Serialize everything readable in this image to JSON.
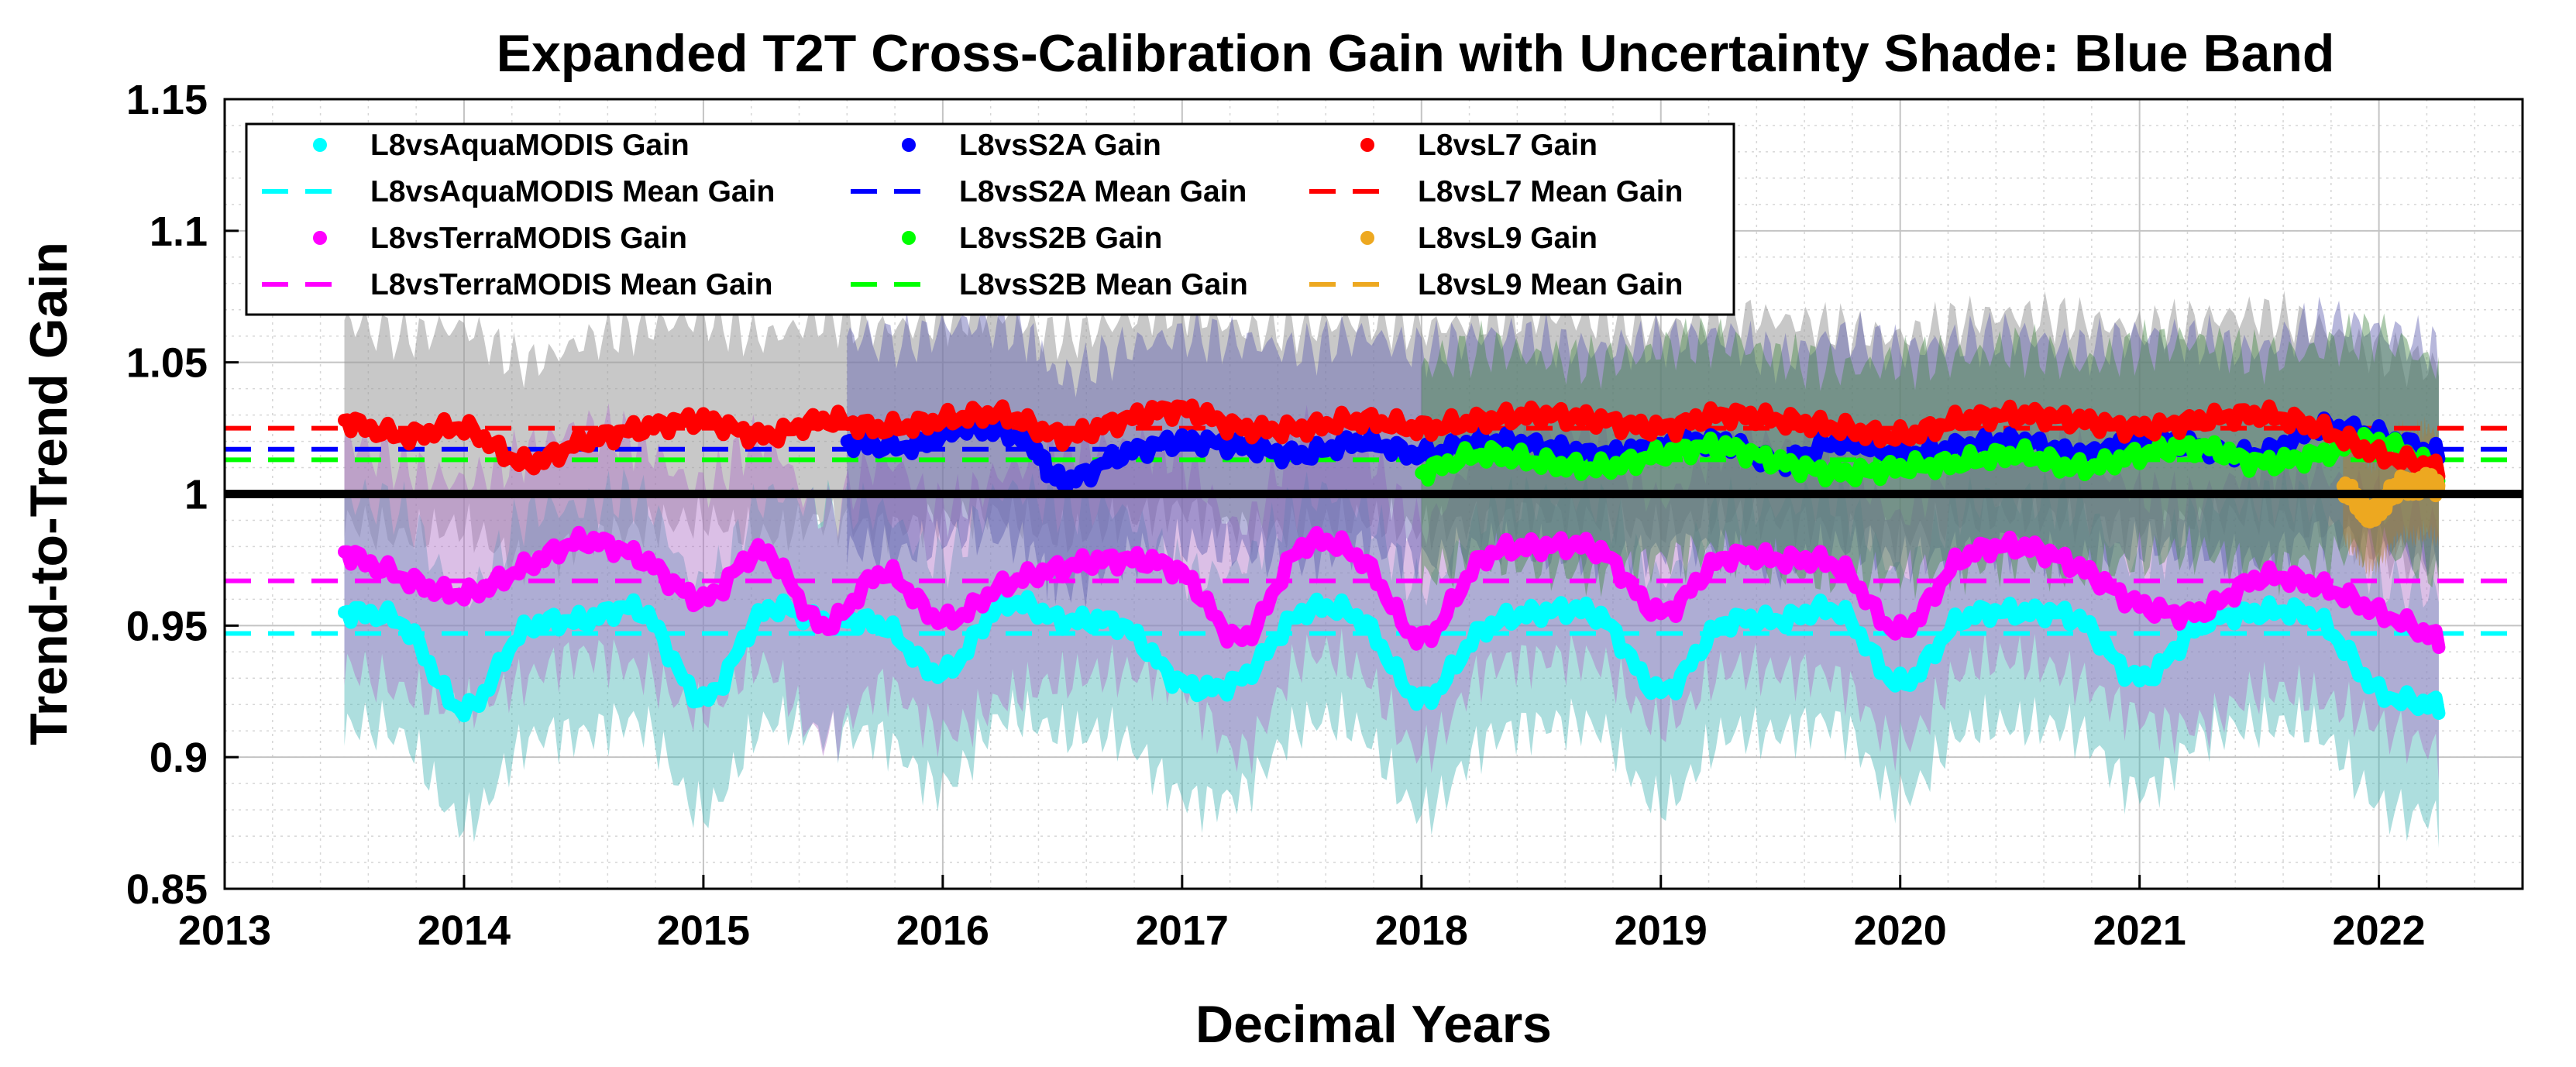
{
  "chart_data": {
    "type": "line",
    "title": "Expanded T2T Cross-Calibration Gain with Uncertainty Shade: Blue Band",
    "xlabel": "Decimal Years",
    "ylabel": "Trend-to-Trend Gain",
    "xlim": [
      2013,
      2022.6
    ],
    "ylim": [
      0.85,
      1.15
    ],
    "xticks": [
      2013,
      2014,
      2015,
      2016,
      2017,
      2018,
      2019,
      2020,
      2021,
      2022
    ],
    "yticks": [
      0.85,
      0.9,
      0.95,
      1,
      1.05,
      1.1,
      1.15
    ],
    "xtick_labels": [
      "2013",
      "2014",
      "2015",
      "2016",
      "2017",
      "2018",
      "2019",
      "2020",
      "2021",
      "2022"
    ],
    "ytick_labels": [
      "0.85",
      "0.9",
      "0.95",
      "1",
      "1.05",
      "1.1",
      "1.15"
    ],
    "grid": true,
    "minor_grid": true,
    "legend_position": "top-left",
    "reference_line": {
      "y": 1.0,
      "color": "#000000"
    },
    "series": [
      {
        "name": "L8vsAquaMODIS",
        "gain_label": "L8vsAquaMODIS Gain",
        "mean_label": "L8vsAquaMODIS Mean Gain",
        "color": "#00ffff",
        "band_color": "#4ab5b5",
        "mean": 0.947,
        "uncertainty": 0.043,
        "x": [
          2013.5,
          2013.75,
          2014.0,
          2014.25,
          2014.5,
          2014.75,
          2015.0,
          2015.25,
          2015.5,
          2015.75,
          2016.0,
          2016.25,
          2016.5,
          2016.75,
          2017.0,
          2017.25,
          2017.5,
          2017.75,
          2018.0,
          2018.25,
          2018.5,
          2018.75,
          2019.0,
          2019.25,
          2019.5,
          2019.75,
          2020.0,
          2020.25,
          2020.5,
          2020.75,
          2021.0,
          2021.25,
          2021.5,
          2021.75,
          2022.0,
          2022.25
        ],
        "values": [
          0.955,
          0.95,
          0.918,
          0.948,
          0.952,
          0.955,
          0.922,
          0.955,
          0.952,
          0.95,
          0.932,
          0.958,
          0.952,
          0.95,
          0.928,
          0.93,
          0.955,
          0.952,
          0.922,
          0.948,
          0.955,
          0.953,
          0.925,
          0.95,
          0.952,
          0.955,
          0.928,
          0.952,
          0.955,
          0.952,
          0.93,
          0.95,
          0.955,
          0.952,
          0.925,
          0.92
        ]
      },
      {
        "name": "L8vsTerraMODIS",
        "gain_label": "L8vsTerraMODIS Gain",
        "mean_label": "L8vsTerraMODIS Mean Gain",
        "color": "#ff00ff",
        "band_color": "#b070c8",
        "mean": 0.967,
        "uncertainty": 0.043,
        "x": [
          2013.5,
          2013.75,
          2014.0,
          2014.25,
          2014.5,
          2014.75,
          2015.0,
          2015.25,
          2015.5,
          2015.75,
          2016.0,
          2016.25,
          2016.5,
          2016.75,
          2017.0,
          2017.25,
          2017.5,
          2017.75,
          2018.0,
          2018.25,
          2018.5,
          2018.75,
          2019.0,
          2019.25,
          2019.5,
          2019.75,
          2020.0,
          2020.25,
          2020.5,
          2020.75,
          2021.0,
          2021.25,
          2021.5,
          2021.75,
          2022.0,
          2022.25
        ],
        "values": [
          0.978,
          0.968,
          0.962,
          0.972,
          0.982,
          0.975,
          0.96,
          0.978,
          0.95,
          0.97,
          0.952,
          0.965,
          0.972,
          0.975,
          0.97,
          0.945,
          0.98,
          0.975,
          0.945,
          0.975,
          0.98,
          0.978,
          0.955,
          0.975,
          0.975,
          0.972,
          0.948,
          0.975,
          0.98,
          0.972,
          0.958,
          0.955,
          0.968,
          0.965,
          0.955,
          0.945
        ]
      },
      {
        "name": "L8vsS2A",
        "gain_label": "L8vsS2A Gain",
        "mean_label": "L8vsS2A Mean Gain",
        "color": "#0000ff",
        "band_color": "#6060b0",
        "mean": 1.017,
        "uncertainty": 0.04,
        "x": [
          2015.6,
          2015.85,
          2016.1,
          2016.35,
          2016.5,
          2016.75,
          2017.0,
          2017.25,
          2017.5,
          2017.75,
          2018.0,
          2018.25,
          2018.5,
          2018.75,
          2019.0,
          2019.25,
          2019.5,
          2019.75,
          2020.0,
          2020.25,
          2020.5,
          2020.75,
          2021.0,
          2021.25,
          2021.5,
          2021.75,
          2022.0,
          2022.25
        ],
        "values": [
          1.02,
          1.018,
          1.025,
          1.02,
          1.005,
          1.015,
          1.02,
          1.018,
          1.015,
          1.02,
          1.015,
          1.02,
          1.018,
          1.015,
          1.018,
          1.02,
          1.012,
          1.02,
          1.015,
          1.018,
          1.02,
          1.015,
          1.02,
          1.018,
          1.015,
          1.025,
          1.022,
          1.015
        ]
      },
      {
        "name": "L8vsS2B",
        "gain_label": "L8vsS2B Gain",
        "mean_label": "L8vsS2B Mean Gain",
        "color": "#00ff00",
        "band_color": "#4a8a4a",
        "mean": 1.013,
        "uncertainty": 0.04,
        "x": [
          2018.0,
          2018.25,
          2018.5,
          2018.75,
          2019.0,
          2019.25,
          2019.5,
          2019.75,
          2020.0,
          2020.25,
          2020.5,
          2020.75,
          2021.0,
          2021.25,
          2021.5,
          2021.75,
          2022.0,
          2022.25
        ],
        "values": [
          1.008,
          1.015,
          1.012,
          1.01,
          1.015,
          1.018,
          1.012,
          1.008,
          1.01,
          1.012,
          1.015,
          1.01,
          1.015,
          1.018,
          1.012,
          1.015,
          1.02,
          1.008
        ]
      },
      {
        "name": "L8vsL7",
        "gain_label": "L8vsL7 Gain",
        "mean_label": "L8vsL7 Mean Gain",
        "color": "#ff0000",
        "band_color": "#9a9a9a",
        "mean": 1.025,
        "uncertainty": 0.038,
        "x": [
          2013.5,
          2013.75,
          2014.0,
          2014.25,
          2014.5,
          2014.75,
          2015.0,
          2015.25,
          2015.5,
          2015.75,
          2016.0,
          2016.25,
          2016.5,
          2016.75,
          2017.0,
          2017.25,
          2017.5,
          2017.75,
          2018.0,
          2018.25,
          2018.5,
          2018.75,
          2019.0,
          2019.25,
          2019.5,
          2019.75,
          2020.0,
          2020.25,
          2020.5,
          2020.75,
          2021.0,
          2021.25,
          2021.5,
          2021.75,
          2022.0,
          2022.25
        ],
        "values": [
          1.028,
          1.022,
          1.025,
          1.012,
          1.02,
          1.025,
          1.028,
          1.022,
          1.028,
          1.025,
          1.028,
          1.03,
          1.022,
          1.028,
          1.032,
          1.025,
          1.025,
          1.028,
          1.025,
          1.028,
          1.03,
          1.028,
          1.025,
          1.03,
          1.028,
          1.025,
          1.022,
          1.028,
          1.03,
          1.028,
          1.025,
          1.028,
          1.03,
          1.025,
          1.015,
          1.01
        ]
      },
      {
        "name": "L8vsL9",
        "gain_label": "L8vsL9 Gain",
        "mean_label": "L8vsL9 Mean Gain",
        "color": "#eda820",
        "band_color": "#b07a30",
        "mean": 1.0,
        "uncertainty": 0.02,
        "x": [
          2021.85,
          2021.9,
          2021.95,
          2022.0,
          2022.05,
          2022.1,
          2022.15,
          2022.2,
          2022.25
        ],
        "values": [
          1.003,
          0.998,
          0.992,
          0.994,
          1.0,
          1.004,
          1.003,
          1.005,
          1.002
        ]
      }
    ]
  }
}
